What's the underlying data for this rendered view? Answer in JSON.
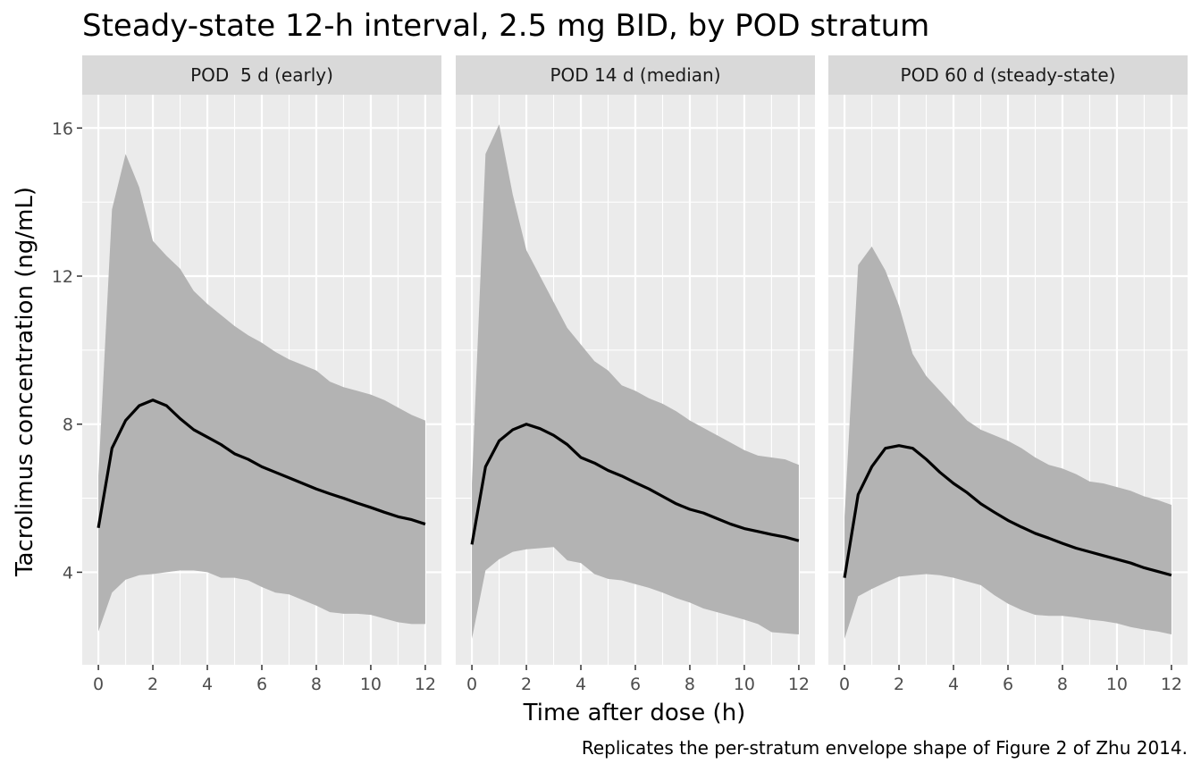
{
  "chart_data": {
    "type": "line",
    "title": "Steady-state 12-h interval, 2.5 mg BID, by POD stratum",
    "xlabel": "Time after dose (h)",
    "ylabel": "Tacrolimus concentration (ng/mL)",
    "caption": "Replicates the per-stratum envelope shape of Figure 2 of Zhu 2014.",
    "xlim": [
      0,
      12
    ],
    "ylim": [
      1.5,
      16.9
    ],
    "x_ticks": [
      0,
      2,
      4,
      6,
      8,
      10,
      12
    ],
    "y_ticks": [
      4,
      8,
      12,
      16
    ],
    "grid": true,
    "colors": {
      "panel_bg": "#ebebeb",
      "grid": "#ffffff",
      "strip_bg": "#d9d9d9",
      "ribbon": "#b3b3b3",
      "line": "#000000"
    },
    "x": [
      0,
      0.5,
      1,
      1.5,
      2,
      2.5,
      3,
      3.5,
      4,
      4.5,
      5,
      5.5,
      6,
      6.5,
      7,
      7.5,
      8,
      8.5,
      9,
      9.5,
      10,
      10.5,
      11,
      11.5,
      12
    ],
    "panels": [
      {
        "label": "POD  5 d (early)",
        "median": [
          5.2,
          7.35,
          8.1,
          8.5,
          8.65,
          8.5,
          8.15,
          7.85,
          7.65,
          7.45,
          7.2,
          7.05,
          6.85,
          6.7,
          6.55,
          6.4,
          6.25,
          6.12,
          6.0,
          5.87,
          5.75,
          5.62,
          5.5,
          5.42,
          5.3
        ],
        "upper": [
          6.6,
          13.8,
          15.3,
          14.4,
          12.95,
          12.55,
          12.2,
          11.6,
          11.25,
          10.95,
          10.65,
          10.4,
          10.2,
          9.95,
          9.75,
          9.6,
          9.45,
          9.15,
          9.0,
          8.9,
          8.8,
          8.65,
          8.45,
          8.25,
          8.1
        ],
        "lower": [
          2.4,
          3.45,
          3.8,
          3.92,
          3.95,
          4.0,
          4.05,
          4.05,
          4.0,
          3.85,
          3.85,
          3.78,
          3.6,
          3.45,
          3.4,
          3.25,
          3.1,
          2.92,
          2.88,
          2.88,
          2.85,
          2.75,
          2.65,
          2.6,
          2.6
        ]
      },
      {
        "label": "POD 14 d (median)",
        "median": [
          4.75,
          6.85,
          7.55,
          7.85,
          8.0,
          7.88,
          7.7,
          7.45,
          7.1,
          6.95,
          6.75,
          6.6,
          6.42,
          6.25,
          6.05,
          5.85,
          5.7,
          5.6,
          5.45,
          5.3,
          5.18,
          5.1,
          5.02,
          4.95,
          4.85
        ],
        "upper": [
          6.4,
          15.3,
          16.1,
          14.2,
          12.7,
          12.0,
          11.3,
          10.6,
          10.15,
          9.7,
          9.45,
          9.05,
          8.9,
          8.7,
          8.55,
          8.35,
          8.1,
          7.9,
          7.7,
          7.5,
          7.3,
          7.15,
          7.1,
          7.05,
          6.9
        ],
        "lower": [
          2.2,
          4.05,
          4.35,
          4.55,
          4.62,
          4.65,
          4.68,
          4.32,
          4.25,
          3.95,
          3.82,
          3.78,
          3.68,
          3.58,
          3.45,
          3.3,
          3.18,
          3.02,
          2.92,
          2.82,
          2.72,
          2.6,
          2.38,
          2.35,
          2.32
        ]
      },
      {
        "label": "POD 60 d (steady-state)",
        "median": [
          3.85,
          6.1,
          6.85,
          7.35,
          7.42,
          7.35,
          7.05,
          6.7,
          6.4,
          6.15,
          5.85,
          5.62,
          5.4,
          5.22,
          5.05,
          4.92,
          4.78,
          4.65,
          4.55,
          4.45,
          4.35,
          4.25,
          4.12,
          4.02,
          3.92
        ],
        "upper": [
          5.5,
          12.3,
          12.8,
          12.15,
          11.2,
          9.9,
          9.3,
          8.9,
          8.5,
          8.1,
          7.85,
          7.7,
          7.55,
          7.35,
          7.1,
          6.9,
          6.8,
          6.65,
          6.45,
          6.4,
          6.3,
          6.2,
          6.05,
          5.95,
          5.82
        ],
        "lower": [
          2.2,
          3.35,
          3.55,
          3.72,
          3.88,
          3.92,
          3.95,
          3.92,
          3.85,
          3.75,
          3.65,
          3.38,
          3.15,
          2.98,
          2.85,
          2.82,
          2.82,
          2.78,
          2.72,
          2.68,
          2.62,
          2.52,
          2.45,
          2.4,
          2.32
        ]
      }
    ]
  }
}
